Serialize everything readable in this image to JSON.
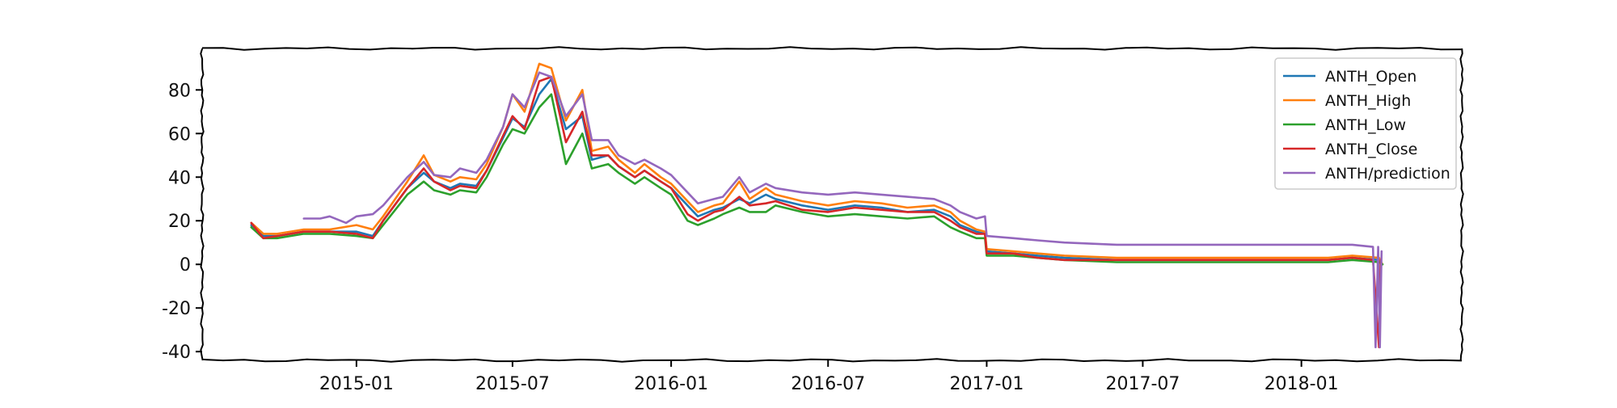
{
  "chart_data": {
    "type": "line",
    "title": "",
    "xlabel": "",
    "ylabel": "",
    "x_ticks": [
      "2015-01",
      "2015-07",
      "2016-01",
      "2016-07",
      "2017-01",
      "2017-07",
      "2018-01"
    ],
    "y_ticks": [
      80,
      60,
      40,
      20,
      0,
      -20,
      -40
    ],
    "ylim": [
      -44,
      99
    ],
    "xlim": [
      "2014-07-06",
      "2018-07-06"
    ],
    "legend_position": "top-right",
    "series": [
      {
        "name": "ANTH_Open",
        "color": "#1f77b4",
        "x": [
          "2014-09-01",
          "2014-09-15",
          "2014-10-01",
          "2014-11-01",
          "2014-12-01",
          "2015-01-01",
          "2015-01-20",
          "2015-02-01",
          "2015-03-01",
          "2015-03-20",
          "2015-04-01",
          "2015-04-20",
          "2015-05-01",
          "2015-05-20",
          "2015-06-01",
          "2015-06-20",
          "2015-07-01",
          "2015-07-15",
          "2015-08-01",
          "2015-08-15",
          "2015-09-01",
          "2015-09-20",
          "2015-10-01",
          "2015-10-20",
          "2015-11-01",
          "2015-11-20",
          "2015-12-01",
          "2015-12-20",
          "2016-01-01",
          "2016-01-20",
          "2016-02-01",
          "2016-02-20",
          "2016-03-01",
          "2016-03-20",
          "2016-04-01",
          "2016-04-20",
          "2016-05-01",
          "2016-06-01",
          "2016-07-01",
          "2016-08-01",
          "2016-09-01",
          "2016-10-01",
          "2016-11-01",
          "2016-11-20",
          "2016-12-01",
          "2016-12-20",
          "2016-12-30",
          "2017-01-01",
          "2017-02-01",
          "2017-03-01",
          "2017-04-01",
          "2017-06-01",
          "2017-09-01",
          "2017-12-01",
          "2018-02-01",
          "2018-03-01",
          "2018-04-01",
          "2018-04-05"
        ],
        "values": [
          18,
          13,
          13,
          15,
          15,
          15,
          13,
          20,
          35,
          42,
          38,
          35,
          37,
          36,
          43,
          58,
          67,
          63,
          78,
          85,
          62,
          68,
          48,
          50,
          45,
          40,
          43,
          38,
          35,
          27,
          22,
          25,
          26,
          30,
          28,
          32,
          30,
          27,
          25,
          27,
          26,
          24,
          25,
          22,
          18,
          15,
          14,
          6,
          5,
          4,
          3,
          2,
          2,
          2,
          2,
          3,
          2,
          0
        ],
        "dash": "",
        "note": "Open (drawn beneath Close)"
      },
      {
        "name": "ANTH_High",
        "color": "#ff7f0e",
        "x": [
          "2014-09-01",
          "2014-09-15",
          "2014-10-01",
          "2014-11-01",
          "2014-12-01",
          "2015-01-01",
          "2015-01-20",
          "2015-02-01",
          "2015-03-01",
          "2015-03-20",
          "2015-04-01",
          "2015-04-20",
          "2015-05-01",
          "2015-05-20",
          "2015-06-01",
          "2015-06-20",
          "2015-07-01",
          "2015-07-15",
          "2015-08-01",
          "2015-08-15",
          "2015-09-01",
          "2015-09-20",
          "2015-10-01",
          "2015-10-20",
          "2015-11-01",
          "2015-11-20",
          "2015-12-01",
          "2015-12-20",
          "2016-01-01",
          "2016-01-20",
          "2016-02-01",
          "2016-02-20",
          "2016-03-01",
          "2016-03-20",
          "2016-04-01",
          "2016-04-20",
          "2016-05-01",
          "2016-06-01",
          "2016-07-01",
          "2016-08-01",
          "2016-09-01",
          "2016-10-01",
          "2016-11-01",
          "2016-11-20",
          "2016-12-01",
          "2016-12-20",
          "2016-12-30",
          "2017-01-01",
          "2017-02-01",
          "2017-03-01",
          "2017-04-01",
          "2017-06-01",
          "2017-09-01",
          "2017-12-01",
          "2018-02-01",
          "2018-03-01",
          "2018-04-01",
          "2018-04-05"
        ],
        "values": [
          19,
          14,
          14,
          16,
          16,
          18,
          16,
          22,
          38,
          50,
          41,
          38,
          40,
          39,
          46,
          63,
          78,
          70,
          92,
          90,
          66,
          80,
          52,
          54,
          48,
          42,
          46,
          40,
          37,
          29,
          24,
          27,
          28,
          38,
          30,
          35,
          32,
          29,
          27,
          29,
          28,
          26,
          27,
          24,
          20,
          16,
          15,
          7,
          6,
          5,
          4,
          3,
          3,
          3,
          3,
          4,
          3,
          0
        ]
      },
      {
        "name": "ANTH_Low",
        "color": "#2ca02c",
        "x": [
          "2014-09-01",
          "2014-09-15",
          "2014-10-01",
          "2014-11-01",
          "2014-12-01",
          "2015-01-01",
          "2015-01-20",
          "2015-02-01",
          "2015-03-01",
          "2015-03-20",
          "2015-04-01",
          "2015-04-20",
          "2015-05-01",
          "2015-05-20",
          "2015-06-01",
          "2015-06-20",
          "2015-07-01",
          "2015-07-15",
          "2015-08-01",
          "2015-08-15",
          "2015-09-01",
          "2015-09-20",
          "2015-10-01",
          "2015-10-20",
          "2015-11-01",
          "2015-11-20",
          "2015-12-01",
          "2015-12-20",
          "2016-01-01",
          "2016-01-20",
          "2016-02-01",
          "2016-02-20",
          "2016-03-01",
          "2016-03-20",
          "2016-04-01",
          "2016-04-20",
          "2016-05-01",
          "2016-06-01",
          "2016-07-01",
          "2016-08-01",
          "2016-09-01",
          "2016-10-01",
          "2016-11-01",
          "2016-11-20",
          "2016-12-01",
          "2016-12-20",
          "2016-12-30",
          "2017-01-01",
          "2017-02-01",
          "2017-03-01",
          "2017-04-01",
          "2017-06-01",
          "2017-09-01",
          "2017-12-01",
          "2018-02-01",
          "2018-03-01",
          "2018-04-01",
          "2018-04-05"
        ],
        "values": [
          17,
          12,
          12,
          14,
          14,
          13,
          12,
          18,
          32,
          38,
          34,
          32,
          34,
          33,
          40,
          55,
          62,
          60,
          72,
          78,
          46,
          60,
          44,
          46,
          42,
          37,
          40,
          35,
          32,
          20,
          18,
          21,
          23,
          26,
          24,
          24,
          27,
          24,
          22,
          23,
          22,
          21,
          22,
          17,
          15,
          12,
          12,
          4,
          4,
          3,
          2,
          1,
          1,
          1,
          1,
          2,
          1,
          0
        ]
      },
      {
        "name": "ANTH_Close",
        "color": "#d62728",
        "x": [
          "2014-09-01",
          "2014-09-15",
          "2014-10-01",
          "2014-11-01",
          "2014-12-01",
          "2015-01-01",
          "2015-01-20",
          "2015-02-01",
          "2015-03-01",
          "2015-03-20",
          "2015-04-01",
          "2015-04-20",
          "2015-05-01",
          "2015-05-20",
          "2015-06-01",
          "2015-06-20",
          "2015-07-01",
          "2015-07-15",
          "2015-08-01",
          "2015-08-15",
          "2015-09-01",
          "2015-09-20",
          "2015-10-01",
          "2015-10-20",
          "2015-11-01",
          "2015-11-20",
          "2015-12-01",
          "2015-12-20",
          "2016-01-01",
          "2016-01-20",
          "2016-02-01",
          "2016-02-20",
          "2016-03-01",
          "2016-03-20",
          "2016-04-01",
          "2016-04-20",
          "2016-05-01",
          "2016-06-01",
          "2016-07-01",
          "2016-08-01",
          "2016-09-01",
          "2016-10-01",
          "2016-11-01",
          "2016-11-20",
          "2016-12-01",
          "2016-12-20",
          "2016-12-30",
          "2017-01-01",
          "2017-02-01",
          "2017-03-01",
          "2017-04-01",
          "2017-06-01",
          "2017-09-01",
          "2017-12-01",
          "2018-02-01",
          "2018-03-01",
          "2018-03-25",
          "2018-04-01",
          "2018-04-03"
        ],
        "values": [
          19,
          12,
          13,
          15,
          15,
          14,
          12,
          20,
          35,
          44,
          38,
          34,
          36,
          35,
          43,
          59,
          68,
          62,
          84,
          86,
          56,
          70,
          50,
          50,
          45,
          40,
          43,
          38,
          35,
          23,
          20,
          24,
          25,
          31,
          27,
          28,
          29,
          25,
          24,
          26,
          25,
          24,
          24,
          20,
          17,
          14,
          14,
          5,
          5,
          3,
          2,
          2,
          2,
          2,
          2,
          3,
          2,
          -38,
          2
        ]
      },
      {
        "name": "ANTH/prediction",
        "color": "#9467bd",
        "x": [
          "2014-11-01",
          "2014-11-20",
          "2014-12-01",
          "2014-12-20",
          "2015-01-01",
          "2015-01-20",
          "2015-02-01",
          "2015-03-01",
          "2015-03-20",
          "2015-04-01",
          "2015-04-20",
          "2015-05-01",
          "2015-05-20",
          "2015-06-01",
          "2015-06-20",
          "2015-07-01",
          "2015-07-15",
          "2015-08-01",
          "2015-08-15",
          "2015-09-01",
          "2015-09-20",
          "2015-10-01",
          "2015-10-20",
          "2015-11-01",
          "2015-11-20",
          "2015-12-01",
          "2015-12-20",
          "2016-01-01",
          "2016-01-20",
          "2016-02-01",
          "2016-02-20",
          "2016-03-01",
          "2016-03-20",
          "2016-04-01",
          "2016-04-20",
          "2016-05-01",
          "2016-06-01",
          "2016-07-01",
          "2016-08-01",
          "2016-09-01",
          "2016-10-01",
          "2016-11-01",
          "2016-11-20",
          "2016-12-01",
          "2016-12-20",
          "2016-12-30",
          "2017-01-01",
          "2017-02-01",
          "2017-03-01",
          "2017-04-01",
          "2017-06-01",
          "2017-09-01",
          "2017-12-01",
          "2018-02-01",
          "2018-03-01",
          "2018-03-25",
          "2018-03-28",
          "2018-03-31",
          "2018-04-02",
          "2018-04-04"
        ],
        "values": [
          21,
          21,
          22,
          19,
          22,
          23,
          27,
          40,
          47,
          41,
          40,
          44,
          42,
          48,
          63,
          78,
          72,
          88,
          86,
          68,
          78,
          57,
          57,
          50,
          46,
          48,
          44,
          41,
          33,
          28,
          30,
          31,
          40,
          33,
          37,
          35,
          33,
          32,
          33,
          32,
          31,
          30,
          27,
          24,
          21,
          22,
          13,
          12,
          11,
          10,
          9,
          9,
          9,
          9,
          9,
          8,
          -38,
          8,
          -38,
          6
        ]
      }
    ]
  }
}
